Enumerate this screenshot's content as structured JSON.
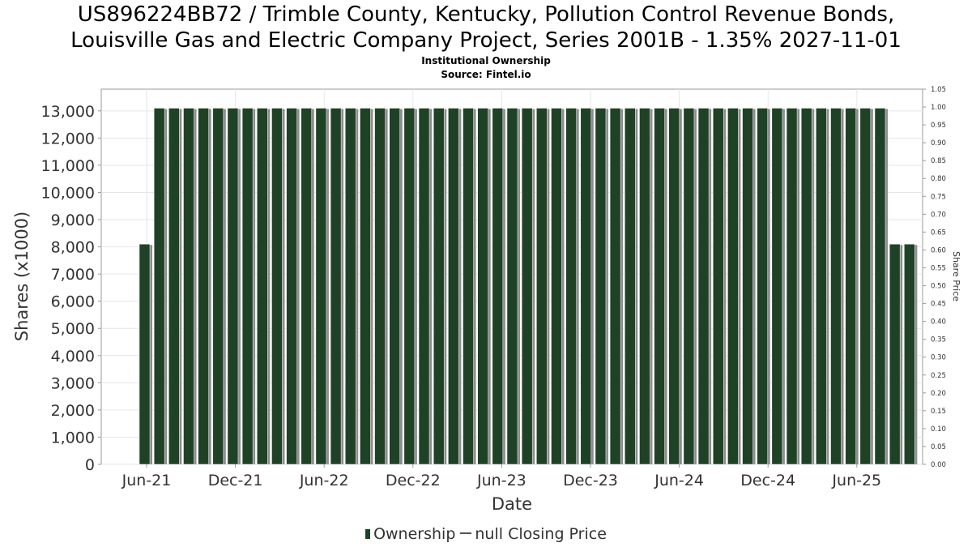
{
  "chart_data": {
    "type": "bar",
    "title": "US896224BB72 / Trimble County, Kentucky, Pollution Control Revenue Bonds,",
    "title_line2": "Louisville Gas and Electric Company Project, Series 2001B - 1.35% 2027-11-01",
    "subtitle": "Institutional Ownership",
    "source": "Source: Fintel.io",
    "xlabel": "Date",
    "ylabel": "Shares (x1000)",
    "y2label": "Share Price",
    "ylim": [
      0,
      13800
    ],
    "y2lim": [
      0,
      1.05
    ],
    "yticks": [
      "0",
      "1,000",
      "2,000",
      "3,000",
      "4,000",
      "5,000",
      "6,000",
      "7,000",
      "8,000",
      "9,000",
      "10,000",
      "11,000",
      "12,000",
      "13,000"
    ],
    "y2ticks": [
      "0.00",
      "0.05",
      "0.10",
      "0.15",
      "0.20",
      "0.25",
      "0.30",
      "0.35",
      "0.40",
      "0.45",
      "0.50",
      "0.55",
      "0.60",
      "0.65",
      "0.70",
      "0.75",
      "0.80",
      "0.85",
      "0.90",
      "0.95",
      "1.00",
      "1.05"
    ],
    "xticks": [
      "Jun-21",
      "Dec-21",
      "Jun-22",
      "Dec-22",
      "Jun-23",
      "Dec-23",
      "Jun-24",
      "Dec-24",
      "Jun-25"
    ],
    "grid": true,
    "legend_position": "bottom",
    "series": [
      {
        "name": "Ownership",
        "color": "#1f4226",
        "values": [
          8100,
          13100,
          13100,
          13100,
          13100,
          13100,
          13100,
          13100,
          13100,
          13100,
          13100,
          13100,
          13100,
          13100,
          13100,
          13100,
          13100,
          13100,
          13100,
          13100,
          13100,
          13100,
          13100,
          13100,
          13100,
          13100,
          13100,
          13100,
          13100,
          13100,
          13100,
          13100,
          13100,
          13100,
          13100,
          13100,
          13100,
          13100,
          13100,
          13100,
          13100,
          13100,
          13100,
          13100,
          13100,
          13100,
          13100,
          13100,
          13100,
          13100,
          13100,
          8100,
          8100
        ]
      }
    ],
    "legend": [
      {
        "label": "Ownership"
      },
      {
        "label": "null Closing Price"
      }
    ]
  }
}
